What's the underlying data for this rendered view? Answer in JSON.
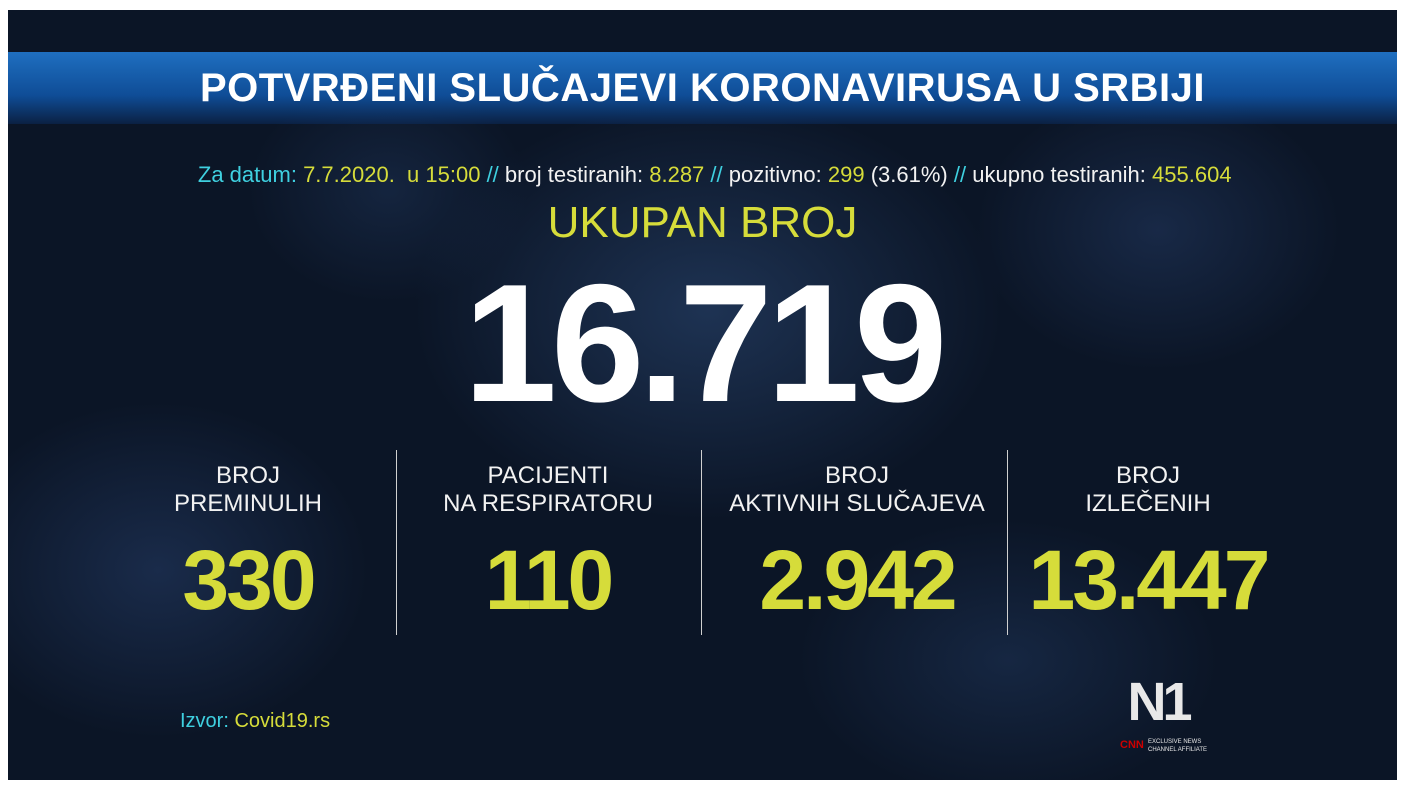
{
  "header": {
    "title": "POTVRĐENI SLUČAJEVI KORONAVIRUSA U SRBIJI"
  },
  "info": {
    "separator": "//",
    "items": [
      {
        "label": "Za datum:",
        "value": "7.7.2020.  u 15:00"
      },
      {
        "label": "broj testiranih:",
        "value": "8.287"
      },
      {
        "label": "pozitivno:",
        "value": "299",
        "extra": "(3.61%)"
      },
      {
        "label": "ukupno testiranih:",
        "value": "455.604"
      }
    ]
  },
  "total": {
    "label": "UKUPAN BROJ",
    "value": "16.719"
  },
  "stats": [
    {
      "label": [
        "BROJ",
        "PREMINULIH"
      ],
      "value": "330"
    },
    {
      "label": [
        "PACIJENTI",
        "NA RESPIRATORU"
      ],
      "value": "110"
    },
    {
      "label": [
        "BROJ",
        "AKTIVNIH SLUČAJEVA"
      ],
      "value": "2.942"
    },
    {
      "label": [
        "BROJ",
        "IZLEČENIH"
      ],
      "value": "13.447"
    }
  ],
  "source": {
    "label": "Izvor:",
    "value": "Covid19.rs"
  },
  "logo": {
    "brand": "N1",
    "network": "CNN",
    "tagline": [
      "EXCLUSIVE NEWS",
      "CHANNEL AFFILIATE"
    ]
  }
}
